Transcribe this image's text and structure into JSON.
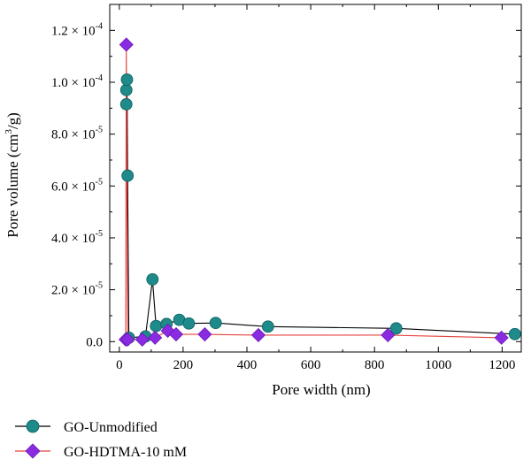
{
  "chart_data": {
    "type": "line",
    "xlabel": "Pore width (nm)",
    "ylabel_main": "Pore volume (cm",
    "ylabel_sup": "3",
    "ylabel_end": "/g)",
    "xlim": [
      -30,
      1260
    ],
    "ylim": [
      -4e-06,
      0.00013
    ],
    "x_ticks": [
      0,
      200,
      400,
      600,
      800,
      1000,
      1200
    ],
    "y_ticks": [
      {
        "value": 0,
        "mantissa": "0.0",
        "exp": ""
      },
      {
        "value": 2e-05,
        "mantissa": "2.0",
        "exp": "-5"
      },
      {
        "value": 4e-05,
        "mantissa": "4.0",
        "exp": "-5"
      },
      {
        "value": 6e-05,
        "mantissa": "6.0",
        "exp": "-5"
      },
      {
        "value": 8e-05,
        "mantissa": "8.0",
        "exp": "-5"
      },
      {
        "value": 0.0001,
        "mantissa": "1.0",
        "exp": "-4"
      },
      {
        "value": 0.00012,
        "mantissa": "1.2",
        "exp": "-4"
      }
    ],
    "times_symbol": "×",
    "ten": "10",
    "legend_position": "bottom-left",
    "series": [
      {
        "name": "GO-Unmodified",
        "line_color": "#000000",
        "marker_color": "#1f8a8a",
        "marker_edge": "#0d5f5f",
        "marker": "circle",
        "points": [
          [
            22,
            9.15e-05
          ],
          [
            22,
            9.7e-05
          ],
          [
            24,
            0.000101
          ],
          [
            26,
            6.4e-05
          ],
          [
            30,
            1.5e-06
          ],
          [
            82,
            2e-06
          ],
          [
            104,
            2.4e-05
          ],
          [
            115,
            6e-06
          ],
          [
            148,
            6.8e-06
          ],
          [
            188,
            8.4e-06
          ],
          [
            218,
            7e-06
          ],
          [
            302,
            7.2e-06
          ],
          [
            466,
            5.8e-06
          ],
          [
            868,
            5.1e-06
          ],
          [
            1240,
            2.9e-06
          ]
        ]
      },
      {
        "name": "GO-HDTMA-10 mM",
        "line_color": "#e8413c",
        "marker_color": "#8a2be2",
        "marker_edge": "#6a1bb8",
        "marker": "diamond",
        "points": [
          [
            20,
            8e-07
          ],
          [
            22,
            0.0001145
          ],
          [
            26,
            8e-07
          ],
          [
            72,
            8e-07
          ],
          [
            112,
            1.5e-06
          ],
          [
            152,
            4.2e-06
          ],
          [
            178,
            2.8e-06
          ],
          [
            268,
            2.8e-06
          ],
          [
            436,
            2.5e-06
          ],
          [
            842,
            2.5e-06
          ],
          [
            1198,
            1.5e-06
          ]
        ]
      }
    ]
  }
}
